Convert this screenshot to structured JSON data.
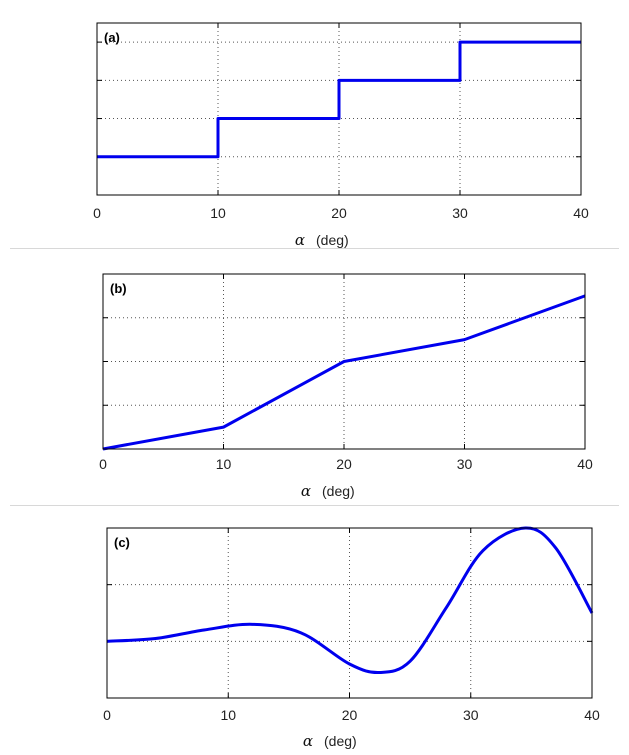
{
  "chart_data": [
    {
      "type": "line",
      "panel_label": "(a)",
      "xlabel_symbol": "α",
      "xlabel_unit": "(deg)",
      "xlim": [
        0,
        40
      ],
      "ylim": [
        0,
        4.5
      ],
      "xticks": [
        "0",
        "10",
        "20",
        "30",
        "40"
      ],
      "ygrid": [
        1,
        2,
        3,
        4
      ],
      "grid": true,
      "series": [
        {
          "color": "#0000ee",
          "x": [
            0,
            10,
            10,
            20,
            20,
            30,
            30,
            40
          ],
          "y": [
            1,
            1,
            2,
            2,
            3,
            3,
            4,
            4
          ]
        }
      ]
    },
    {
      "type": "line",
      "panel_label": "(b)",
      "xlabel_symbol": "α",
      "xlabel_unit": "(deg)",
      "xlim": [
        0,
        40
      ],
      "ylim": [
        0,
        4
      ],
      "xticks": [
        "0",
        "10",
        "20",
        "30",
        "40"
      ],
      "ygrid": [
        1,
        2,
        3
      ],
      "grid": true,
      "series": [
        {
          "color": "#0000ee",
          "x": [
            0,
            10,
            20,
            30,
            40
          ],
          "y": [
            0,
            0.5,
            2,
            2.5,
            3.5
          ]
        }
      ]
    },
    {
      "type": "line",
      "panel_label": "(c)",
      "xlabel_symbol": "α",
      "xlabel_unit": "(deg)",
      "xlim": [
        0,
        40
      ],
      "ylim": [
        0,
        3
      ],
      "xticks": [
        "0",
        "10",
        "20",
        "30",
        "40"
      ],
      "ygrid": [
        1,
        2
      ],
      "grid": true,
      "series": [
        {
          "color": "#0000ee",
          "x": [
            0,
            4,
            8,
            12,
            16,
            20,
            22.5,
            25,
            28,
            31,
            34.5,
            37,
            40
          ],
          "y": [
            1.0,
            1.05,
            1.2,
            1.3,
            1.15,
            0.6,
            0.45,
            0.65,
            1.6,
            2.6,
            3.0,
            2.65,
            1.5
          ]
        }
      ]
    }
  ]
}
